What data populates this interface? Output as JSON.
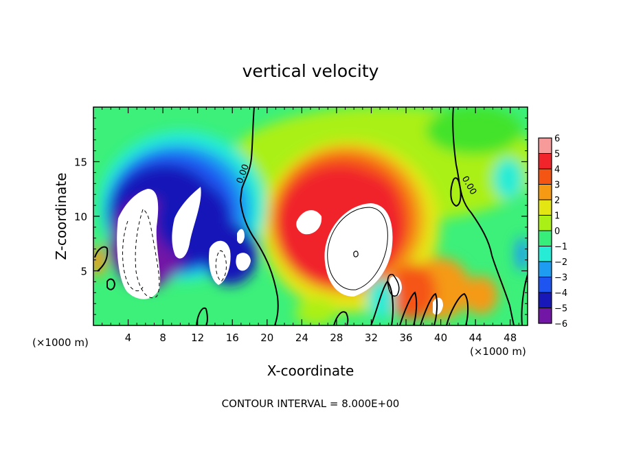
{
  "chart_data": {
    "type": "heatmap",
    "title": "vertical velocity",
    "xlabel": "X-coordinate",
    "ylabel": "Z-coordinate",
    "x_unit_left": "(×1000 m)",
    "x_unit_right": "(×1000 m)",
    "footer": "CONTOUR INTERVAL = 8.000E+00",
    "xlim": [
      0,
      50
    ],
    "ylim": [
      0,
      20
    ],
    "x_ticks": [
      4,
      8,
      12,
      16,
      20,
      24,
      28,
      32,
      36,
      40,
      44,
      48
    ],
    "x_tick_labels": [
      "4",
      "8",
      "12",
      "16",
      "20",
      "24",
      "28",
      "32",
      "36",
      "40",
      "44",
      "48"
    ],
    "y_ticks": [
      5,
      10,
      15
    ],
    "y_tick_labels": [
      "5",
      "10",
      "15"
    ],
    "colorbar": {
      "levels": [
        6,
        5,
        4,
        3,
        2,
        1,
        0,
        -1,
        -2,
        -3,
        -4,
        -5,
        -6
      ],
      "labels": [
        "6",
        "5",
        "4",
        "3",
        "2",
        "1",
        "0",
        "−1",
        "−2",
        "−3",
        "−4",
        "−5",
        "−6"
      ]
    },
    "contour_labels": [
      {
        "text": "0.00",
        "x": 17.5,
        "y": 13.8
      },
      {
        "text": "0.00",
        "x": 43.0,
        "y": 12.7
      }
    ],
    "features": [
      {
        "name": "downdraft core",
        "sign": "negative",
        "x_range": [
          2,
          9
        ],
        "z_range": [
          2,
          12.5
        ]
      },
      {
        "name": "downdraft core",
        "sign": "negative",
        "x_range": [
          9,
          12.5
        ],
        "z_range": [
          6,
          12.5
        ]
      },
      {
        "name": "updraft core",
        "sign": "positive",
        "x_range": [
          27,
          34
        ],
        "z_range": [
          3.5,
          10.7
        ]
      },
      {
        "name": "updraft core",
        "sign": "positive",
        "x_range": [
          23,
          26
        ],
        "z_range": [
          8.5,
          10.5
        ]
      }
    ]
  }
}
